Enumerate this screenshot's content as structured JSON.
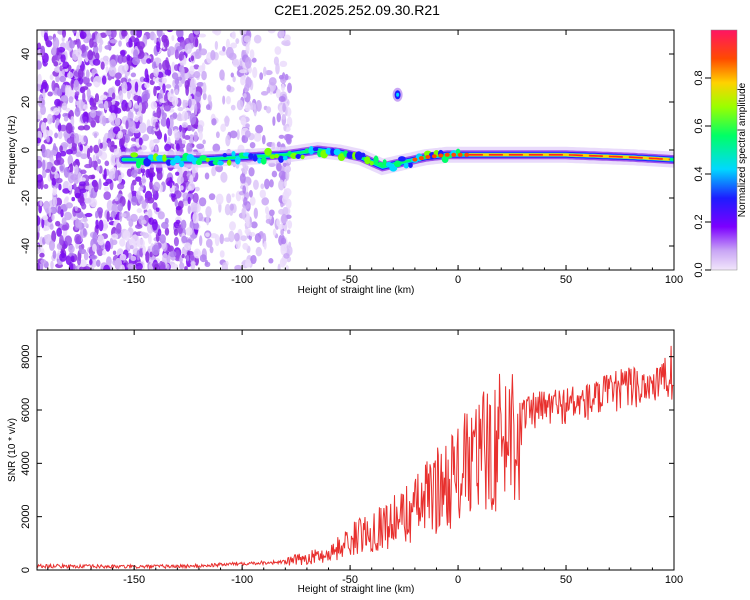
{
  "title": "C2E1.2025.252.09.30.R21",
  "chart_data": [
    {
      "type": "heatmap",
      "xlabel": "Height of straight line (km)",
      "ylabel": "Frequency (Hz)",
      "xlim": [
        -195,
        100
      ],
      "ylim": [
        -50,
        50
      ],
      "xticks": [
        -150,
        -100,
        -50,
        0,
        50,
        100
      ],
      "yticks": [
        -40,
        -20,
        0,
        20,
        40
      ],
      "ridge_freq": [
        {
          "x": -140,
          "y": -4
        },
        {
          "x": -120,
          "y": -4
        },
        {
          "x": -100,
          "y": -3
        },
        {
          "x": -80,
          "y": -2
        },
        {
          "x": -65,
          "y": 0
        },
        {
          "x": -55,
          "y": -1
        },
        {
          "x": -45,
          "y": -3
        },
        {
          "x": -35,
          "y": -7
        },
        {
          "x": -25,
          "y": -5
        },
        {
          "x": -15,
          "y": -3
        },
        {
          "x": -5,
          "y": -2
        },
        {
          "x": 0,
          "y": -2
        },
        {
          "x": 20,
          "y": -2
        },
        {
          "x": 50,
          "y": -2
        },
        {
          "x": 80,
          "y": -3
        },
        {
          "x": 100,
          "y": -4
        }
      ],
      "features": [
        {
          "x": -28,
          "y": 23
        }
      ]
    },
    {
      "type": "colorbar",
      "label": "Normalized spectral amplitude",
      "ticks": [
        0.0,
        0.2,
        0.4,
        0.6,
        0.8
      ],
      "range": [
        0,
        1
      ]
    },
    {
      "type": "line",
      "xlabel": "Height of straight line (km)",
      "ylabel": "SNR (10 * v/v)",
      "xlim": [
        -195,
        100
      ],
      "ylim": [
        0,
        9000
      ],
      "xticks": [
        -150,
        -100,
        -50,
        0,
        50,
        100
      ],
      "yticks": [
        0,
        2000,
        4000,
        6000,
        8000
      ],
      "color": "#e8302e",
      "envelope": [
        {
          "x": -195,
          "y": 150
        },
        {
          "x": -150,
          "y": 120
        },
        {
          "x": -120,
          "y": 150
        },
        {
          "x": -100,
          "y": 250
        },
        {
          "x": -80,
          "y": 300
        },
        {
          "x": -60,
          "y": 600
        },
        {
          "x": -50,
          "y": 1100
        },
        {
          "x": -40,
          "y": 1500
        },
        {
          "x": -30,
          "y": 1800
        },
        {
          "x": -20,
          "y": 2300
        },
        {
          "x": -10,
          "y": 3000
        },
        {
          "x": 0,
          "y": 3600
        },
        {
          "x": 10,
          "y": 4300
        },
        {
          "x": 20,
          "y": 4900
        },
        {
          "x": 30,
          "y": 5800
        },
        {
          "x": 40,
          "y": 6100
        },
        {
          "x": 50,
          "y": 6200
        },
        {
          "x": 60,
          "y": 6300
        },
        {
          "x": 70,
          "y": 6600
        },
        {
          "x": 80,
          "y": 6900
        },
        {
          "x": 90,
          "y": 7000
        },
        {
          "x": 100,
          "y": 7200
        }
      ]
    }
  ]
}
